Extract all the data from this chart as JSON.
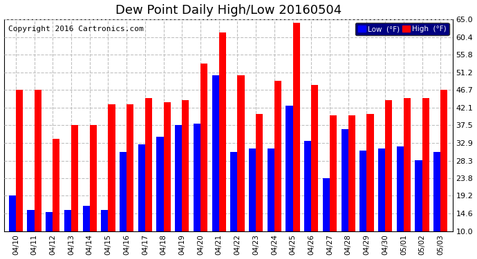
{
  "title": "Dew Point Daily High/Low 20160504",
  "copyright": "Copyright 2016 Cartronics.com",
  "dates": [
    "04/10",
    "04/11",
    "04/12",
    "04/13",
    "04/14",
    "04/15",
    "04/16",
    "04/17",
    "04/18",
    "04/19",
    "04/20",
    "04/21",
    "04/22",
    "04/23",
    "04/24",
    "04/25",
    "04/26",
    "04/27",
    "04/28",
    "04/29",
    "04/30",
    "05/01",
    "05/02",
    "05/03"
  ],
  "high_values": [
    46.7,
    46.7,
    34.0,
    37.5,
    37.5,
    43.0,
    43.0,
    44.5,
    43.5,
    44.0,
    53.5,
    61.5,
    50.5,
    40.5,
    49.0,
    64.0,
    48.0,
    40.0,
    40.0,
    40.5,
    44.0,
    44.5,
    44.5,
    46.7
  ],
  "low_values": [
    19.2,
    15.5,
    15.0,
    15.5,
    16.5,
    15.5,
    30.5,
    32.5,
    34.5,
    37.5,
    38.0,
    50.5,
    30.5,
    31.5,
    31.5,
    42.5,
    33.5,
    23.8,
    36.5,
    31.0,
    31.5,
    32.0,
    28.5,
    30.5
  ],
  "high_color": "#FF0000",
  "low_color": "#0000FF",
  "bg_color": "#FFFFFF",
  "ylim_min": 10.0,
  "ylim_max": 65.0,
  "yticks": [
    10.0,
    14.6,
    19.2,
    23.8,
    28.3,
    32.9,
    37.5,
    42.1,
    46.7,
    51.2,
    55.8,
    60.4,
    65.0
  ],
  "grid_color": "#C0C0C0",
  "title_fontsize": 13,
  "copyright_fontsize": 8,
  "legend_low_label": "Low  (°F)",
  "legend_high_label": "High  (°F)"
}
